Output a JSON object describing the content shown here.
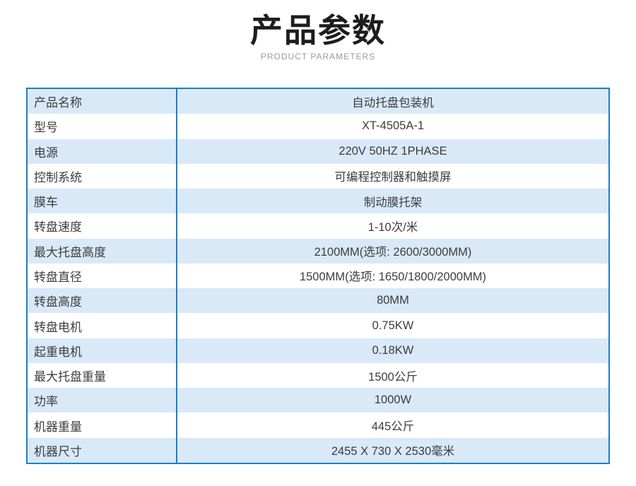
{
  "header": {
    "title": "产品参数",
    "subtitle": "PRODUCT PARAMETERS"
  },
  "colors": {
    "table_border": "#1b80c4",
    "stripe_row": "#d9e9f8",
    "title_text": "#1d1d1d",
    "subtitle_text": "#9b9b9b",
    "cell_text": "#3d3d3d"
  },
  "table": {
    "rows": [
      {
        "label": "产品名称",
        "value": "自动托盘包装机"
      },
      {
        "label": "型号",
        "value": "XT-4505A-1"
      },
      {
        "label": "电源",
        "value": "220V 50HZ 1PHASE"
      },
      {
        "label": "控制系统",
        "value": "可编程控制器和触摸屏"
      },
      {
        "label": "膜车",
        "value": "制动膜托架"
      },
      {
        "label": "转盘速度",
        "value": "1-10次/米"
      },
      {
        "label": "最大托盘高度",
        "value": "2100MM(选项: 2600/3000MM)"
      },
      {
        "label": "转盘直径",
        "value": "1500MM(选项: 1650/1800/2000MM)"
      },
      {
        "label": "转盘高度",
        "value": "80MM"
      },
      {
        "label": "转盘电机",
        "value": "0.75KW"
      },
      {
        "label": "起重电机",
        "value": "0.18KW"
      },
      {
        "label": "最大托盘重量",
        "value": "1500公斤"
      },
      {
        "label": "功率",
        "value": "1000W"
      },
      {
        "label": "机器重量",
        "value": "445公斤"
      },
      {
        "label": "机器尺寸",
        "value": "2455 X 730 X 2530毫米"
      }
    ]
  }
}
